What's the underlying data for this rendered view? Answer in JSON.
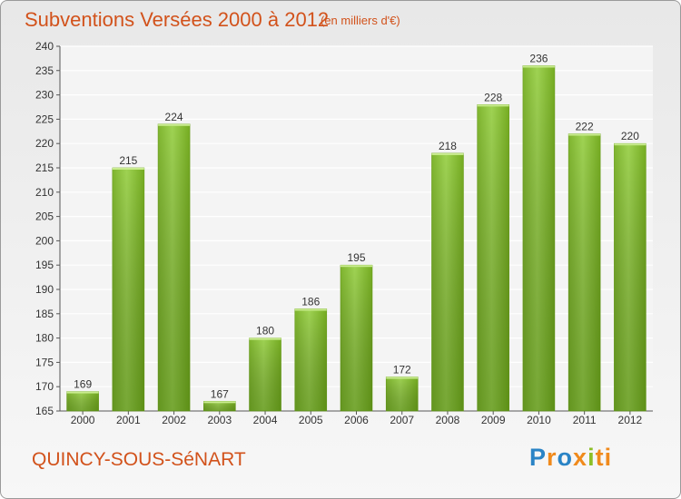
{
  "title": "Subventions Versées 2000 à 2012",
  "subtitle": "(en milliers d'€)",
  "commune": "QUINCY-SOUS-SéNART",
  "brand": [
    "P",
    "r",
    "o",
    "x",
    "i",
    "ti"
  ],
  "colors": {
    "accent": "#d2521b",
    "bar_light": "#9ccf4d",
    "bar_dark": "#5f9b12"
  },
  "chart_data": {
    "type": "bar",
    "title": "Subventions Versées 2000 à 2012",
    "subtitle": "(en milliers d'€)",
    "categories": [
      "2000",
      "2001",
      "2002",
      "2003",
      "2004",
      "2005",
      "2006",
      "2007",
      "2008",
      "2009",
      "2010",
      "2011",
      "2012"
    ],
    "values": [
      169,
      215,
      224,
      167,
      180,
      186,
      195,
      172,
      218,
      228,
      236,
      222,
      220
    ],
    "ylim": [
      165,
      240
    ],
    "yticks": [
      165,
      170,
      175,
      180,
      185,
      190,
      195,
      200,
      205,
      210,
      215,
      220,
      225,
      230,
      235,
      240
    ],
    "grid": true,
    "xlabel": "",
    "ylabel": ""
  }
}
